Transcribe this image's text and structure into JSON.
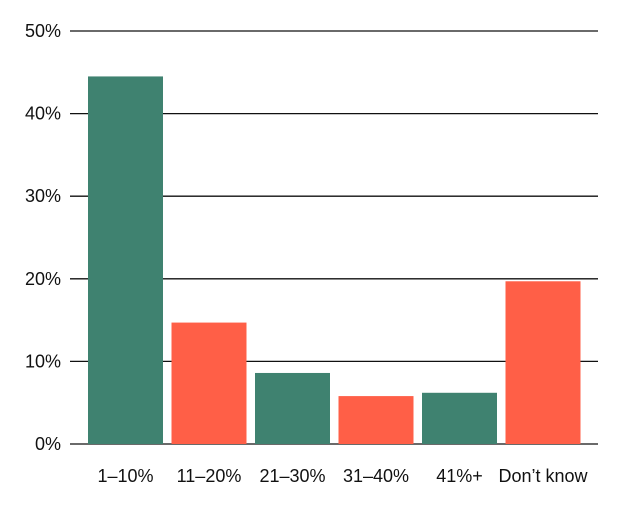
{
  "chart_data": {
    "type": "bar",
    "title": "",
    "xlabel": "",
    "ylabel": "",
    "categories": [
      "1–10%",
      "11–20%",
      "21–30%",
      "31–40%",
      "41%+",
      "Don’t know"
    ],
    "values": [
      44.5,
      14.7,
      8.6,
      5.8,
      6.2,
      19.7
    ],
    "bar_colors": [
      "#3f8270",
      "#ff5f47",
      "#3f8270",
      "#ff5f47",
      "#3f8270",
      "#ff5f47"
    ],
    "ylim": [
      0,
      50
    ],
    "yticks": [
      0,
      10,
      20,
      30,
      40,
      50
    ],
    "ytick_labels": [
      "0%",
      "10%",
      "20%",
      "30%",
      "40%",
      "50%"
    ],
    "grid": true
  }
}
